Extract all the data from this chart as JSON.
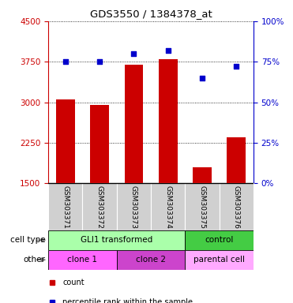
{
  "title": "GDS3550 / 1384378_at",
  "samples": [
    "GSM303371",
    "GSM303372",
    "GSM303373",
    "GSM303374",
    "GSM303375",
    "GSM303376"
  ],
  "counts": [
    3050,
    2950,
    3700,
    3800,
    1800,
    2350
  ],
  "percentiles": [
    75,
    75,
    80,
    82,
    65,
    72
  ],
  "ylim_left": [
    1500,
    4500
  ],
  "ylim_right": [
    0,
    100
  ],
  "yticks_left": [
    1500,
    2250,
    3000,
    3750,
    4500
  ],
  "yticks_right": [
    0,
    25,
    50,
    75,
    100
  ],
  "bar_color": "#cc0000",
  "dot_color": "#0000cc",
  "left_tick_color": "#cc0000",
  "right_tick_color": "#0000cc",
  "cell_type_row": {
    "label": "cell type",
    "groups": [
      {
        "text": "GLI1 transformed",
        "start": 0,
        "end": 4,
        "color": "#aaffaa"
      },
      {
        "text": "control",
        "start": 4,
        "end": 6,
        "color": "#44cc44"
      }
    ]
  },
  "other_row": {
    "label": "other",
    "groups": [
      {
        "text": "clone 1",
        "start": 0,
        "end": 2,
        "color": "#ff66ff"
      },
      {
        "text": "clone 2",
        "start": 2,
        "end": 4,
        "color": "#cc44cc"
      },
      {
        "text": "parental cell",
        "start": 4,
        "end": 6,
        "color": "#ffaaff"
      }
    ]
  },
  "legend_items": [
    {
      "label": "count",
      "color": "#cc0000"
    },
    {
      "label": "percentile rank within the sample",
      "color": "#0000cc"
    }
  ],
  "bar_width": 0.55,
  "figsize": [
    3.71,
    3.84
  ],
  "dpi": 100
}
